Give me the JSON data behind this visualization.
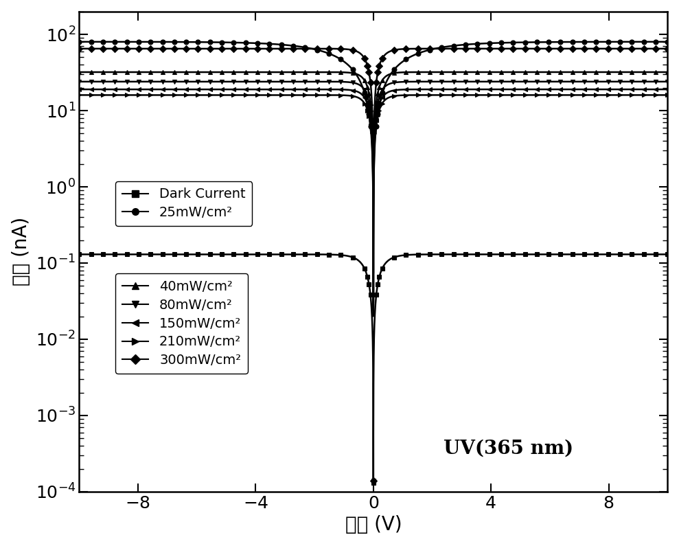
{
  "title_annotation": "UV(365 nm)",
  "xlabel": "电压 (V)",
  "ylabel": "电流 (nA)",
  "xlim": [
    -10,
    10
  ],
  "ylim": [
    0.0001,
    200
  ],
  "xticks": [
    -8,
    -4,
    0,
    4,
    8
  ],
  "curves": [
    {
      "label": "Dark Current",
      "marker": "s",
      "flat_val": 0.13,
      "zero_min": 0.00013,
      "steepness": 3.5,
      "type": "dark"
    },
    {
      "label": "25mW/cm²",
      "marker": "o",
      "flat_val": 80.0,
      "zero_min": 5.0,
      "steepness": 0.8,
      "type": "light"
    },
    {
      "label": "40mW/cm²",
      "marker": "^",
      "flat_val": 32.0,
      "zero_min": 0.00014,
      "steepness": 5.0,
      "type": "light"
    },
    {
      "label": "80mW/cm²",
      "marker": "v",
      "flat_val": 24.0,
      "zero_min": 0.00014,
      "steepness": 5.0,
      "type": "light"
    },
    {
      "label": "150mW/cm²",
      "marker": "<",
      "flat_val": 19.0,
      "zero_min": 0.00014,
      "steepness": 5.0,
      "type": "light"
    },
    {
      "label": "210mW/cm²",
      "marker": ">",
      "flat_val": 16.0,
      "zero_min": 0.00014,
      "steepness": 5.0,
      "type": "light"
    },
    {
      "label": "300mW/cm²",
      "marker": "D",
      "flat_val": 65.0,
      "zero_min": 0.00014,
      "steepness": 4.5,
      "type": "light"
    }
  ],
  "n_line_pts": 3000,
  "n_marker_pts": 60,
  "marker_size": 5,
  "line_width": 1.8,
  "color": "#000000"
}
